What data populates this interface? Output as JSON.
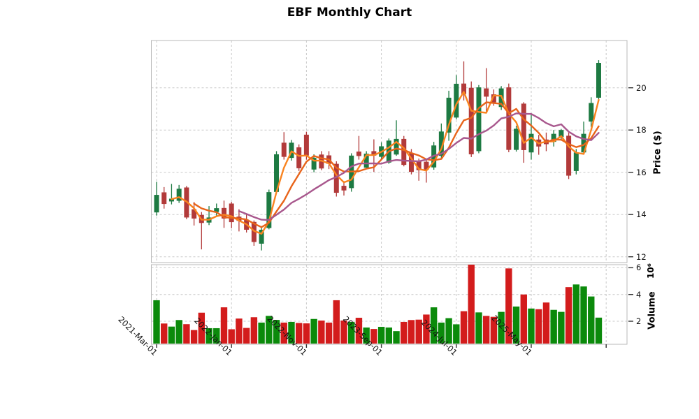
{
  "title": "EBF Monthly Chart",
  "axes": {
    "price": {
      "label": "Price ($)",
      "ticks": [
        20,
        18,
        16,
        14,
        12
      ]
    },
    "volume": {
      "label": "Volume",
      "offset": "10⁶",
      "ticks": [
        6,
        4,
        2
      ]
    },
    "x": {
      "tick_labels": [
        "2021-Mar-01",
        "2022-Jan-01",
        "2022-Nov-01",
        "2023-Sep-01",
        "2024-Jul-01",
        "2025-May-01"
      ],
      "tick_indices": [
        0,
        10,
        20,
        30,
        40,
        50
      ],
      "unlabeled_tick_index": 60
    }
  },
  "style_colors": {
    "candle_up": "#1d7a42",
    "candle_down": "#b23a3a",
    "volume_up": "#0b8a0b",
    "volume_down": "#d31c1c",
    "ma_short": "#f9831f",
    "ma_mid": "#e8641a",
    "ma_long": "#a8578d",
    "grid": "#c9c9c9",
    "spine": "#b9b9b9",
    "tick_text": "#111111"
  },
  "chart_data": {
    "type": "candlestick",
    "title": "EBF Monthly Chart",
    "x_unit": "month",
    "ylabel": "Price ($)",
    "ylabel2": "Volume ×10⁶",
    "price_ylim": [
      11.7,
      22.25
    ],
    "volume_ylim": [
      0,
      6.3
    ],
    "grid": "dashed",
    "legend_position": "none",
    "moving_average_windows": [
      3,
      6,
      12
    ],
    "candles": [
      {
        "date": "2021-03",
        "o": 14.1,
        "h": 15.55,
        "l": 13.95,
        "c": 14.93,
        "v": 3.57
      },
      {
        "date": "2021-04",
        "o": 15.05,
        "h": 15.3,
        "l": 14.28,
        "c": 14.5,
        "v": 1.83
      },
      {
        "date": "2021-05",
        "o": 14.62,
        "h": 15.45,
        "l": 14.48,
        "c": 14.75,
        "v": 1.6
      },
      {
        "date": "2021-06",
        "o": 14.65,
        "h": 15.4,
        "l": 14.55,
        "c": 15.22,
        "v": 2.09
      },
      {
        "date": "2021-07",
        "o": 15.28,
        "h": 15.35,
        "l": 13.78,
        "c": 13.86,
        "v": 1.78
      },
      {
        "date": "2021-08",
        "o": 14.25,
        "h": 14.6,
        "l": 13.48,
        "c": 13.81,
        "v": 1.34
      },
      {
        "date": "2021-09",
        "o": 13.98,
        "h": 14.12,
        "l": 12.35,
        "c": 13.6,
        "v": 2.64
      },
      {
        "date": "2021-10",
        "o": 13.62,
        "h": 14.4,
        "l": 13.5,
        "c": 13.86,
        "v": 1.48
      },
      {
        "date": "2021-11",
        "o": 14.12,
        "h": 14.52,
        "l": 13.88,
        "c": 14.3,
        "v": 1.48
      },
      {
        "date": "2021-12",
        "o": 14.31,
        "h": 14.66,
        "l": 13.37,
        "c": 13.81,
        "v": 3.04
      },
      {
        "date": "2022-01",
        "o": 14.52,
        "h": 14.6,
        "l": 13.35,
        "c": 13.64,
        "v": 1.4
      },
      {
        "date": "2022-02",
        "o": 13.9,
        "h": 14.25,
        "l": 13.2,
        "c": 13.7,
        "v": 2.2
      },
      {
        "date": "2022-03",
        "o": 13.76,
        "h": 14.0,
        "l": 13.15,
        "c": 13.28,
        "v": 1.5
      },
      {
        "date": "2022-04",
        "o": 13.65,
        "h": 13.72,
        "l": 12.52,
        "c": 12.7,
        "v": 2.3
      },
      {
        "date": "2022-05",
        "o": 12.62,
        "h": 13.45,
        "l": 12.3,
        "c": 13.28,
        "v": 1.9
      },
      {
        "date": "2022-06",
        "o": 13.36,
        "h": 15.18,
        "l": 13.3,
        "c": 15.06,
        "v": 2.4
      },
      {
        "date": "2022-07",
        "o": 15.07,
        "h": 17.0,
        "l": 15.0,
        "c": 16.85,
        "v": 2.1
      },
      {
        "date": "2022-08",
        "o": 17.4,
        "h": 17.9,
        "l": 16.6,
        "c": 16.73,
        "v": 1.9
      },
      {
        "date": "2022-09",
        "o": 16.68,
        "h": 17.53,
        "l": 16.55,
        "c": 17.4,
        "v": 1.95
      },
      {
        "date": "2022-10",
        "o": 17.18,
        "h": 17.32,
        "l": 16.06,
        "c": 16.19,
        "v": 1.87
      },
      {
        "date": "2022-11",
        "o": 17.78,
        "h": 17.92,
        "l": 16.6,
        "c": 16.79,
        "v": 1.84
      },
      {
        "date": "2022-12",
        "o": 16.13,
        "h": 16.85,
        "l": 16.0,
        "c": 16.68,
        "v": 2.17
      },
      {
        "date": "2023-01",
        "o": 16.84,
        "h": 17.0,
        "l": 16.1,
        "c": 16.18,
        "v": 2.05
      },
      {
        "date": "2023-02",
        "o": 16.8,
        "h": 17.0,
        "l": 16.15,
        "c": 16.4,
        "v": 1.9
      },
      {
        "date": "2023-03",
        "o": 16.4,
        "h": 16.52,
        "l": 14.85,
        "c": 15.03,
        "v": 3.57
      },
      {
        "date": "2023-04",
        "o": 15.36,
        "h": 15.58,
        "l": 14.9,
        "c": 15.14,
        "v": 2.05
      },
      {
        "date": "2023-05",
        "o": 15.25,
        "h": 16.9,
        "l": 15.08,
        "c": 16.79,
        "v": 1.95
      },
      {
        "date": "2023-06",
        "o": 16.98,
        "h": 17.72,
        "l": 16.6,
        "c": 16.77,
        "v": 2.26
      },
      {
        "date": "2023-07",
        "o": 16.22,
        "h": 17.0,
        "l": 16.15,
        "c": 16.88,
        "v": 1.53
      },
      {
        "date": "2023-08",
        "o": 17.0,
        "h": 17.56,
        "l": 16.02,
        "c": 16.79,
        "v": 1.42
      },
      {
        "date": "2023-09",
        "o": 16.73,
        "h": 17.42,
        "l": 16.6,
        "c": 17.23,
        "v": 1.58
      },
      {
        "date": "2023-10",
        "o": 16.46,
        "h": 17.6,
        "l": 16.4,
        "c": 17.5,
        "v": 1.53
      },
      {
        "date": "2023-11",
        "o": 16.84,
        "h": 18.46,
        "l": 16.78,
        "c": 17.58,
        "v": 1.26
      },
      {
        "date": "2023-12",
        "o": 17.58,
        "h": 17.72,
        "l": 16.28,
        "c": 16.35,
        "v": 1.95
      },
      {
        "date": "2024-01",
        "o": 16.9,
        "h": 17.1,
        "l": 15.9,
        "c": 16.02,
        "v": 2.09
      },
      {
        "date": "2024-02",
        "o": 16.55,
        "h": 16.65,
        "l": 15.6,
        "c": 16.1,
        "v": 2.12
      },
      {
        "date": "2024-03",
        "o": 16.5,
        "h": 16.58,
        "l": 15.51,
        "c": 16.12,
        "v": 2.5
      },
      {
        "date": "2024-04",
        "o": 16.23,
        "h": 17.44,
        "l": 16.12,
        "c": 17.27,
        "v": 3.04
      },
      {
        "date": "2024-05",
        "o": 16.78,
        "h": 18.31,
        "l": 16.67,
        "c": 17.93,
        "v": 1.9
      },
      {
        "date": "2024-06",
        "o": 17.88,
        "h": 19.86,
        "l": 17.49,
        "c": 19.53,
        "v": 2.23
      },
      {
        "date": "2024-07",
        "o": 18.59,
        "h": 20.6,
        "l": 18.5,
        "c": 20.19,
        "v": 1.77
      },
      {
        "date": "2024-08",
        "o": 20.2,
        "h": 21.25,
        "l": 19.4,
        "c": 19.7,
        "v": 2.75
      },
      {
        "date": "2024-09",
        "o": 20.0,
        "h": 20.3,
        "l": 16.72,
        "c": 16.85,
        "v": 6.25
      },
      {
        "date": "2024-10",
        "o": 17.0,
        "h": 20.13,
        "l": 16.9,
        "c": 20.02,
        "v": 2.66
      },
      {
        "date": "2024-11",
        "o": 19.97,
        "h": 20.93,
        "l": 18.85,
        "c": 19.58,
        "v": 2.4
      },
      {
        "date": "2024-12",
        "o": 19.69,
        "h": 19.92,
        "l": 19.15,
        "c": 19.31,
        "v": 2.33
      },
      {
        "date": "2025-01",
        "o": 19.09,
        "h": 20.08,
        "l": 18.95,
        "c": 19.97,
        "v": 2.7
      },
      {
        "date": "2025-02",
        "o": 20.02,
        "h": 20.2,
        "l": 16.95,
        "c": 17.06,
        "v": 5.95
      },
      {
        "date": "2025-03",
        "o": 17.06,
        "h": 18.2,
        "l": 16.98,
        "c": 18.06,
        "v": 3.1
      },
      {
        "date": "2025-04",
        "o": 19.25,
        "h": 19.32,
        "l": 16.45,
        "c": 17.05,
        "v": 4.0
      },
      {
        "date": "2025-05",
        "o": 16.94,
        "h": 18.76,
        "l": 16.6,
        "c": 17.82,
        "v": 2.95
      },
      {
        "date": "2025-06",
        "o": 17.55,
        "h": 17.77,
        "l": 16.83,
        "c": 17.22,
        "v": 2.9
      },
      {
        "date": "2025-07",
        "o": 17.55,
        "h": 17.88,
        "l": 17.0,
        "c": 17.33,
        "v": 3.4
      },
      {
        "date": "2025-08",
        "o": 17.44,
        "h": 18.0,
        "l": 17.22,
        "c": 17.82,
        "v": 2.85
      },
      {
        "date": "2025-09",
        "o": 17.67,
        "h": 18.05,
        "l": 17.5,
        "c": 18.0,
        "v": 2.7
      },
      {
        "date": "2025-10",
        "o": 17.73,
        "h": 17.88,
        "l": 15.68,
        "c": 15.84,
        "v": 4.55
      },
      {
        "date": "2025-11",
        "o": 16.06,
        "h": 17.1,
        "l": 15.9,
        "c": 16.94,
        "v": 4.75
      },
      {
        "date": "2025-12",
        "o": 16.94,
        "h": 18.4,
        "l": 16.85,
        "c": 17.82,
        "v": 4.6
      },
      {
        "date": "2026-01",
        "o": 18.4,
        "h": 19.55,
        "l": 18.15,
        "c": 19.28,
        "v": 3.85
      },
      {
        "date": "2026-02",
        "o": 19.53,
        "h": 21.31,
        "l": 19.45,
        "c": 21.18,
        "v": 2.27
      }
    ]
  }
}
